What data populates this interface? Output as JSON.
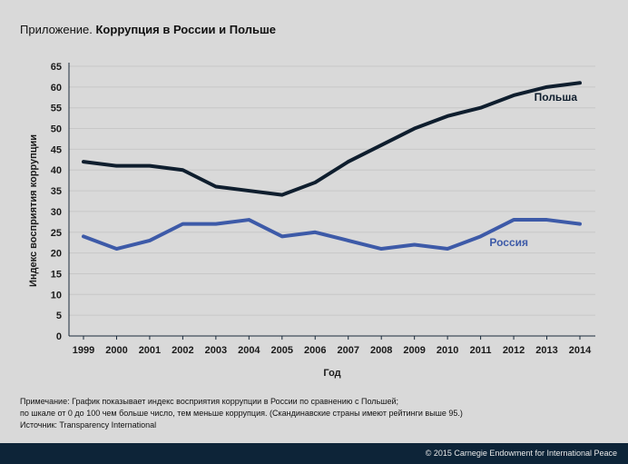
{
  "title_prefix": "Приложение.",
  "title_main": "Коррупция в России и Польше",
  "chart_data": {
    "type": "line",
    "title": "Коррупция в России и Польше",
    "xlabel": "Год",
    "ylabel": "Индекс восприятия коррупции",
    "x": [
      1999,
      2000,
      2001,
      2002,
      2003,
      2004,
      2005,
      2006,
      2007,
      2008,
      2009,
      2010,
      2011,
      2012,
      2013,
      2014
    ],
    "ylim": [
      0,
      65
    ],
    "yticks": [
      0,
      5,
      10,
      15,
      20,
      25,
      30,
      35,
      40,
      45,
      50,
      55,
      60,
      65
    ],
    "grid": true,
    "series": [
      {
        "name": "Польша",
        "color": "#0f1e2e",
        "values": [
          42,
          41,
          41,
          40,
          36,
          35,
          34,
          37,
          42,
          46,
          50,
          53,
          55,
          58,
          60,
          61
        ]
      },
      {
        "name": "Россия",
        "color": "#3d5aa8",
        "values": [
          24,
          21,
          23,
          27,
          27,
          28,
          24,
          25,
          23,
          21,
          22,
          21,
          24,
          28,
          28,
          27
        ]
      }
    ]
  },
  "notes": {
    "line1": "Примечание: График показывает индекс восприятия коррупции в России по сравнению с Польшей;",
    "line2": "по шкале от 0 до 100 чем больше число, тем меньше коррупция. (Скандинавские страны имеют рейтинги выше 95.)",
    "source": "Источник: Transparency International"
  },
  "footer": {
    "copyright": "© 2015 Carnegie Endowment for International Peace"
  }
}
